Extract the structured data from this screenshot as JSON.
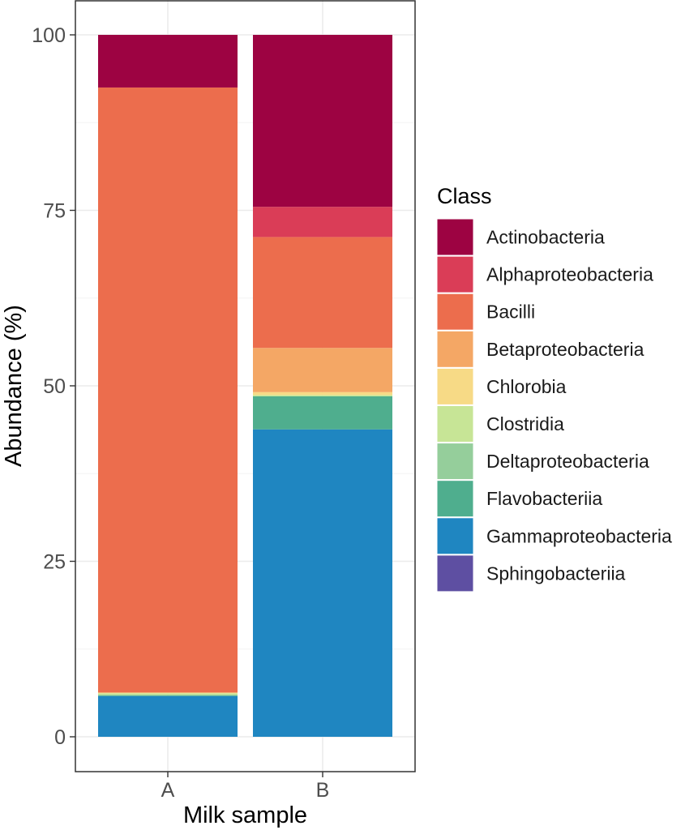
{
  "chart_data": {
    "type": "bar",
    "stacked": true,
    "title": "",
    "xlabel": "Milk sample",
    "ylabel": "Abundance (%)",
    "ylim": [
      0,
      100
    ],
    "yticks": [
      0,
      25,
      50,
      75,
      100
    ],
    "grid": true,
    "legend_title": "Class",
    "legend_position": "right",
    "categories": [
      "A",
      "B"
    ],
    "series": [
      {
        "name": "Sphingobacteriia",
        "color": "#5E4FA2",
        "values": [
          0.0,
          0.0
        ]
      },
      {
        "name": "Gammaproteobacteria",
        "color": "#1F86C1",
        "values": [
          5.8,
          43.8
        ]
      },
      {
        "name": "Flavobacteriia",
        "color": "#4FAE8E",
        "values": [
          0.1,
          4.7
        ]
      },
      {
        "name": "Deltaproteobacteria",
        "color": "#95CE9B",
        "values": [
          0.1,
          0.0
        ]
      },
      {
        "name": "Clostridia",
        "color": "#C7E596",
        "values": [
          0.2,
          0.2
        ]
      },
      {
        "name": "Chlorobia",
        "color": "#F7DA86",
        "values": [
          0.1,
          0.4
        ]
      },
      {
        "name": "Betaproteobacteria",
        "color": "#F4A765",
        "values": [
          0.0,
          6.3
        ]
      },
      {
        "name": "Bacilli",
        "color": "#EC6D4D",
        "values": [
          86.2,
          15.8
        ]
      },
      {
        "name": "Alphaproteobacteria",
        "color": "#DA3D57",
        "values": [
          0.0,
          4.3
        ]
      },
      {
        "name": "Actinobacteria",
        "color": "#9D0342",
        "values": [
          7.5,
          24.5
        ]
      }
    ],
    "legend_order": [
      "Actinobacteria",
      "Alphaproteobacteria",
      "Bacilli",
      "Betaproteobacteria",
      "Chlorobia",
      "Clostridia",
      "Deltaproteobacteria",
      "Flavobacteriia",
      "Gammaproteobacteria",
      "Sphingobacteriia"
    ]
  }
}
